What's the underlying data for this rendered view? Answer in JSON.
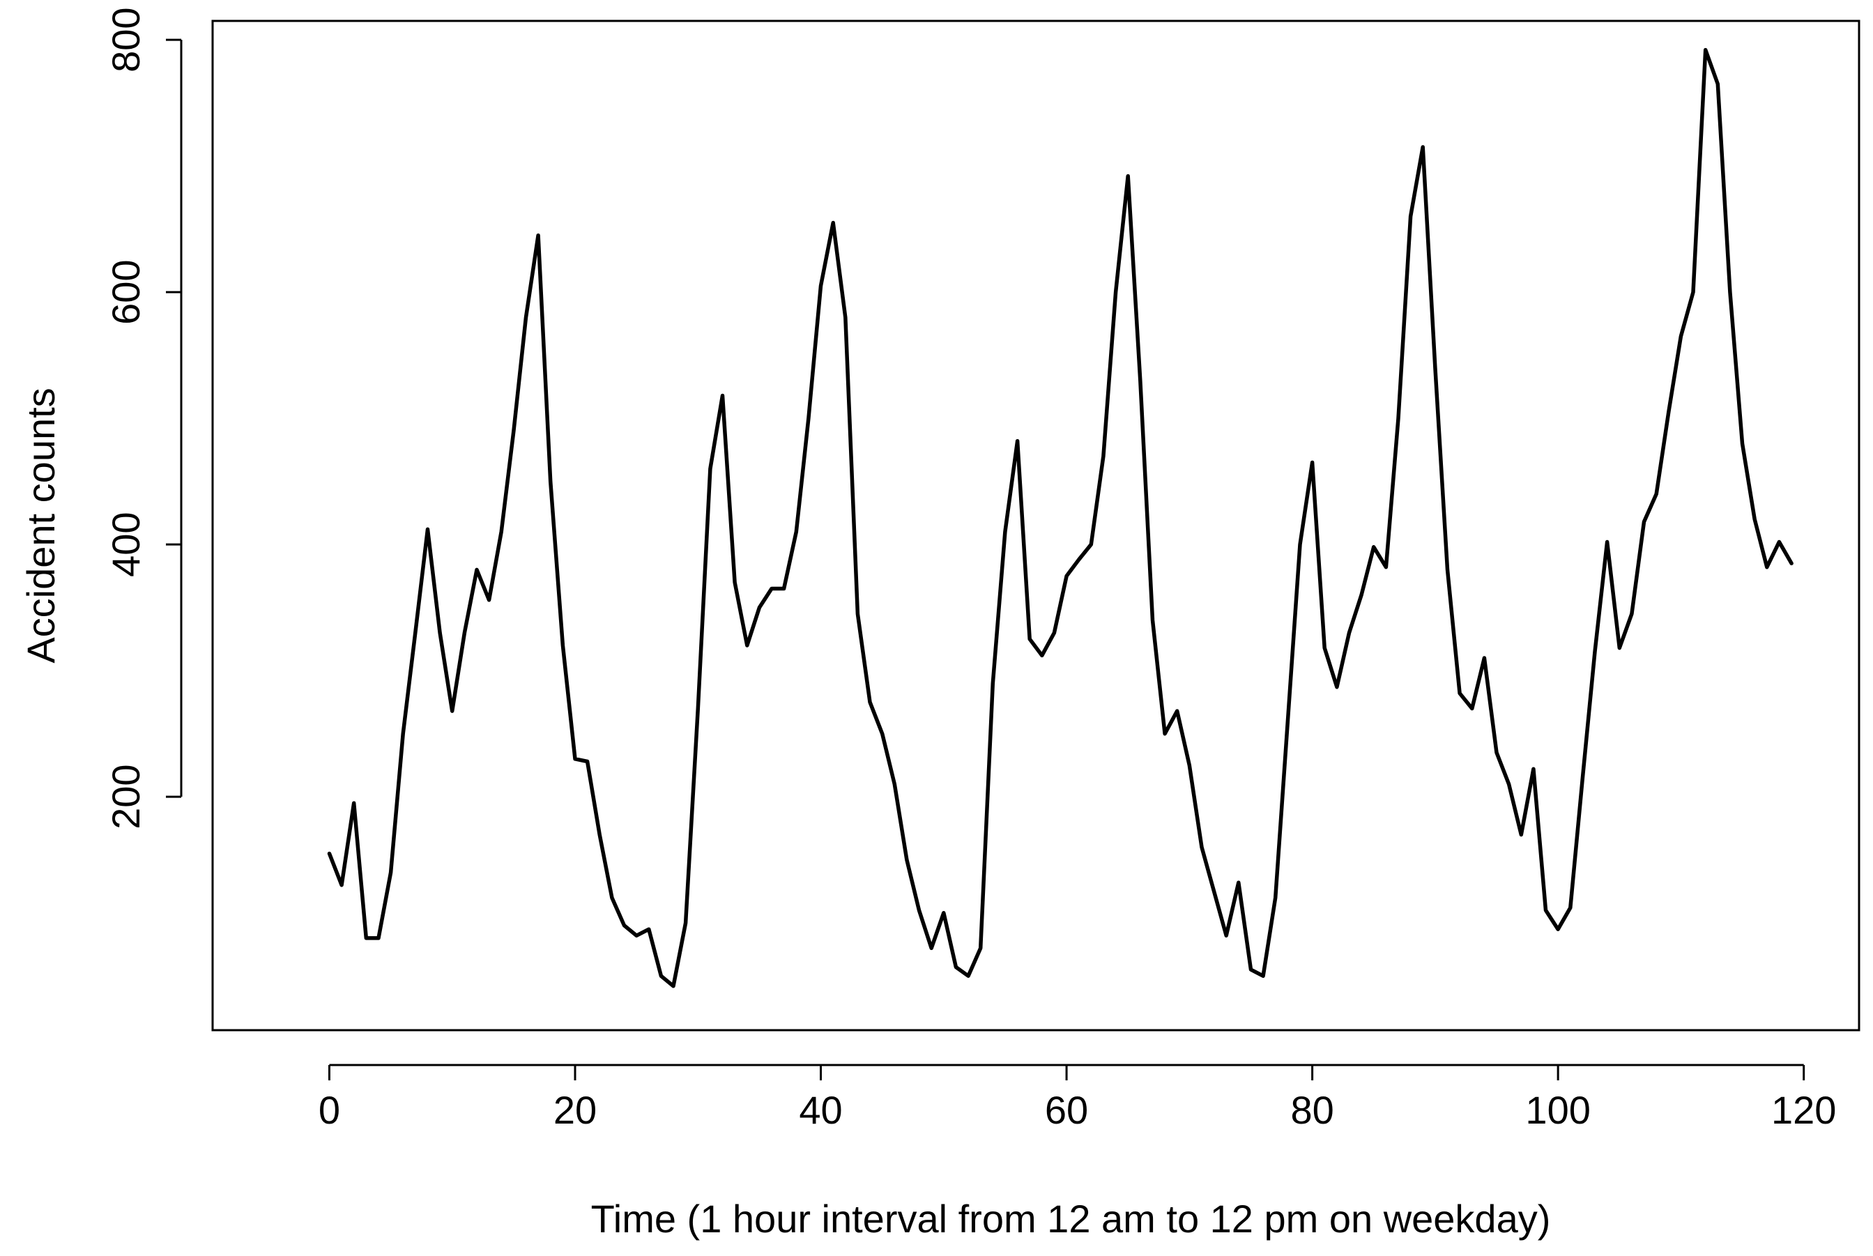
{
  "chart_data": {
    "type": "line",
    "title": "",
    "xlabel": "Time (1 hour interval from 12 am to 12 pm on weekday)",
    "ylabel": "Accident counts",
    "xlim": [
      -9.5,
      124.5
    ],
    "ylim": [
      15,
      815
    ],
    "xticks": [
      0,
      20,
      40,
      60,
      80,
      100,
      120
    ],
    "yticks": [
      200,
      400,
      600,
      800
    ],
    "grid": false,
    "series": [
      {
        "name": "accident counts",
        "color": "#000000",
        "x": [
          0,
          1,
          2,
          3,
          4,
          5,
          6,
          7,
          8,
          9,
          10,
          11,
          12,
          13,
          14,
          15,
          16,
          17,
          18,
          19,
          20,
          21,
          22,
          23,
          24,
          25,
          26,
          27,
          28,
          29,
          30,
          31,
          32,
          33,
          34,
          35,
          36,
          37,
          38,
          39,
          40,
          41,
          42,
          43,
          44,
          45,
          46,
          47,
          48,
          49,
          50,
          51,
          52,
          53,
          54,
          55,
          56,
          57,
          58,
          59,
          60,
          61,
          62,
          63,
          64,
          65,
          66,
          67,
          68,
          69,
          70,
          71,
          72,
          73,
          74,
          75,
          76,
          77,
          78,
          79,
          80,
          81,
          82,
          83,
          84,
          85,
          86,
          87,
          88,
          89,
          90,
          91,
          92,
          93,
          94,
          95,
          96,
          97,
          98,
          99,
          100,
          101,
          102,
          103,
          104,
          105,
          106,
          107,
          108,
          109,
          110,
          111,
          112,
          113,
          114,
          115,
          116,
          117,
          118,
          119
        ],
        "values": [
          155,
          130,
          195,
          88,
          88,
          140,
          250,
          330,
          412,
          330,
          268,
          330,
          380,
          356,
          410,
          490,
          580,
          645,
          450,
          320,
          230,
          228,
          170,
          120,
          98,
          90,
          95,
          58,
          50,
          100,
          270,
          460,
          518,
          370,
          320,
          350,
          365,
          365,
          410,
          500,
          605,
          655,
          580,
          345,
          275,
          250,
          210,
          150,
          110,
          80,
          108,
          65,
          58,
          80,
          290,
          410,
          482,
          325,
          312,
          330,
          375,
          388,
          400,
          470,
          600,
          692,
          530,
          340,
          250,
          268,
          225,
          160,
          125,
          90,
          132,
          63,
          58,
          120,
          260,
          400,
          465,
          318,
          287,
          330,
          360,
          398,
          382,
          500,
          660,
          715,
          540,
          380,
          282,
          270,
          310,
          235,
          210,
          170,
          222,
          110,
          95,
          112,
          215,
          315,
          402,
          318,
          345,
          418,
          440,
          505,
          565,
          600,
          792,
          765,
          600,
          480,
          420,
          382,
          402,
          385
        ]
      }
    ]
  }
}
